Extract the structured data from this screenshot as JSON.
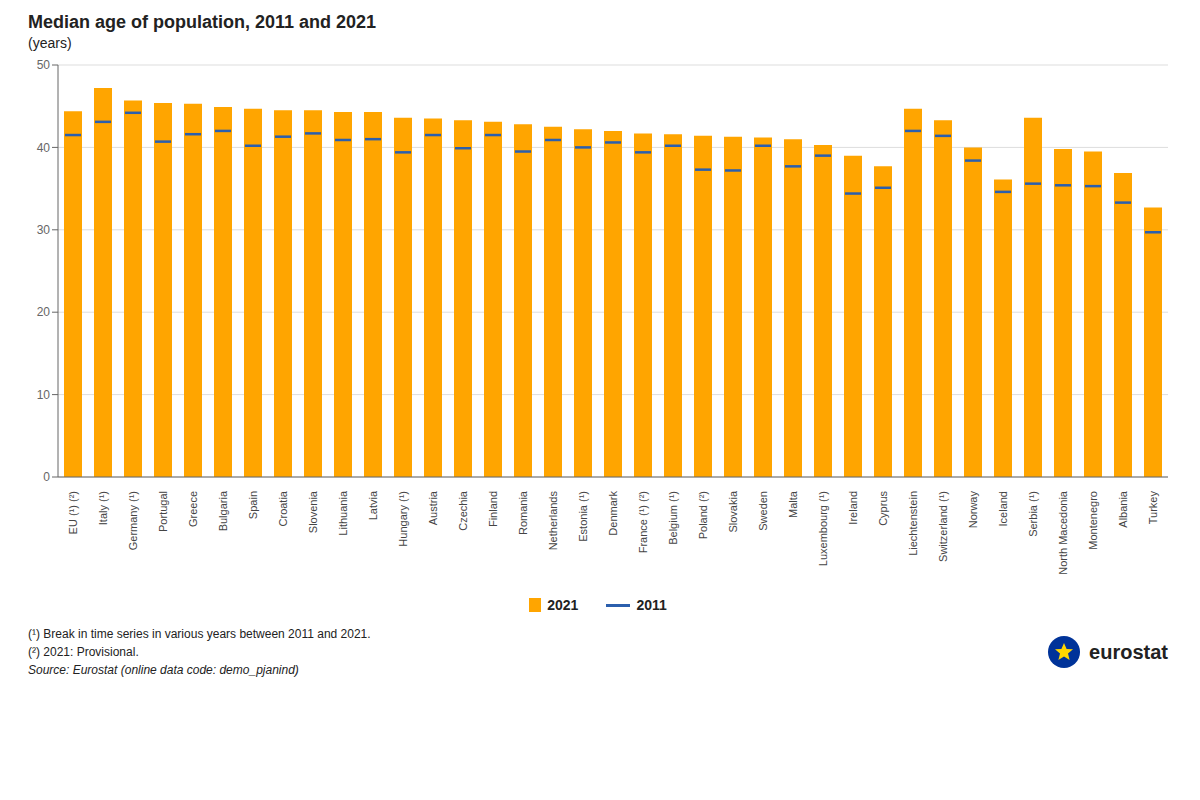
{
  "chart_data": {
    "type": "bar",
    "title": "Median age of population, 2011 and 2021",
    "subtitle": "(years)",
    "annotations": [
      "(¹) Break in time series in various years between 2011 and 2021.",
      "(²) 2021: Provisional.",
      "Source: Eurostat (online data code: demo_pjanind)",
      "eurostat"
    ],
    "categories": [
      "EU (¹) (²)",
      "Italy (¹)",
      "Germany (¹)",
      "Portugal",
      "Greece",
      "Bulgaria",
      "Spain",
      "Croatia",
      "Slovenia",
      "Lithuania",
      "Latvia",
      "Hungary (¹)",
      "Austria",
      "Czechia",
      "Finland",
      "Romania",
      "Netherlands",
      "Estonia (¹)",
      "Denmark",
      "France (¹) (²)",
      "Belgium (¹)",
      "Poland (²)",
      "Slovakia",
      "Sweden",
      "Malta",
      "Luxembourg (¹)",
      "Ireland",
      "Cyprus",
      "Liechtenstein",
      "Switzerland (¹)",
      "Norway",
      "Iceland",
      "Serbia (¹)",
      "North Macedonia",
      "Montenegro",
      "Albania",
      "Turkey"
    ],
    "series": [
      {
        "name": "2021",
        "type": "bar",
        "color": "#FFA500",
        "values": [
          44.4,
          47.2,
          45.7,
          45.4,
          45.3,
          44.9,
          44.7,
          44.5,
          44.5,
          44.3,
          44.3,
          43.6,
          43.5,
          43.3,
          43.1,
          42.8,
          42.5,
          42.2,
          42.0,
          41.7,
          41.6,
          41.4,
          41.3,
          41.2,
          41.0,
          40.3,
          39.0,
          37.7,
          44.7,
          43.3,
          40.0,
          36.1,
          43.6,
          39.8,
          39.5,
          36.9,
          32.7
        ]
      },
      {
        "name": "2011",
        "type": "marker",
        "marker": "hline",
        "color": "#2b5fad",
        "values": [
          41.5,
          43.1,
          44.2,
          40.7,
          41.6,
          42.0,
          40.2,
          41.3,
          41.7,
          40.9,
          41.0,
          39.4,
          41.5,
          39.9,
          41.5,
          39.5,
          40.9,
          40.0,
          40.6,
          39.4,
          40.2,
          37.3,
          37.2,
          40.2,
          37.7,
          39.0,
          34.4,
          35.1,
          42.0,
          41.4,
          38.4,
          34.6,
          35.6,
          35.4,
          35.3,
          33.3,
          29.7
        ]
      }
    ],
    "ylim": [
      0,
      50
    ],
    "yticks": [
      0,
      10,
      20,
      30,
      40,
      50
    ],
    "grid": true,
    "legend": "bottom"
  }
}
